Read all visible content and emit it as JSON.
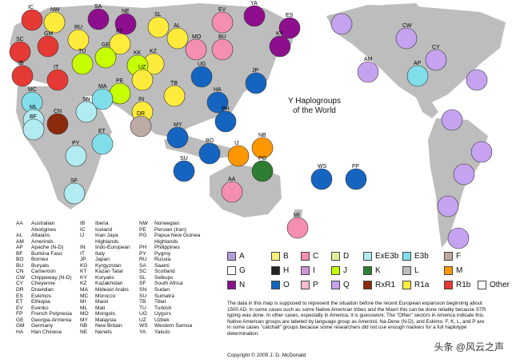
{
  "title": {
    "line1": "Y Haplogroups",
    "line2": "of the World"
  },
  "haplogroups": [
    {
      "code": "A",
      "color": "#b39ddb"
    },
    {
      "code": "B",
      "color": "#fff176"
    },
    {
      "code": "C",
      "color": "#f48fb1"
    },
    {
      "code": "D",
      "color": "#e6ee9c"
    },
    {
      "code": "ExE3b",
      "color": "#b2ebf2"
    },
    {
      "code": "E3b",
      "color": "#80deea"
    },
    {
      "code": "F",
      "color": "#bcaaa4"
    },
    {
      "code": "G",
      "color": "#ffffff"
    },
    {
      "code": "H",
      "color": "#212121"
    },
    {
      "code": "I",
      "color": "#ce93d8"
    },
    {
      "code": "J",
      "color": "#c6ff00"
    },
    {
      "code": "K",
      "color": "#2e7d32"
    },
    {
      "code": "L",
      "color": "#bdbdbd"
    },
    {
      "code": "M",
      "color": "#ff9800"
    },
    {
      "code": "N",
      "color": "#8e0f8e"
    },
    {
      "code": "O",
      "color": "#1565c0"
    },
    {
      "code": "P",
      "color": "#f8bbd0"
    },
    {
      "code": "Q",
      "color": "#c5a3f0"
    },
    {
      "code": "RxR1",
      "color": "#8b2b0e"
    },
    {
      "code": "R1a",
      "color": "#ffeb3b"
    },
    {
      "code": "R1b",
      "color": "#e53935"
    },
    {
      "code": "Other",
      "color": "#ffffff"
    }
  ],
  "regions": [
    {
      "code": "IC",
      "color": "#e53935",
      "label": "IC"
    },
    {
      "code": "NW",
      "color": "#ffeb3b",
      "label": "NW"
    },
    {
      "code": "SA",
      "color": "#8e0f8e",
      "label": "SA"
    },
    {
      "code": "NE",
      "color": "#8e0f8e",
      "label": "NE"
    },
    {
      "code": "SL",
      "color": "#ffeb3b",
      "label": "SL"
    },
    {
      "code": "EV",
      "color": "#f48fb1",
      "label": "EV"
    },
    {
      "code": "YA",
      "color": "#8e0f8e",
      "label": "YA"
    },
    {
      "code": "ES",
      "color": "#8e0f8e",
      "label": "ES"
    },
    {
      "code": "SC",
      "color": "#e53935",
      "label": "SC"
    },
    {
      "code": "GM",
      "color": "#e53935",
      "label": "GM"
    },
    {
      "code": "RU",
      "color": "#ffeb3b",
      "label": "RU"
    },
    {
      "code": "KT",
      "color": "#ffeb3b",
      "label": "KT"
    },
    {
      "code": "GE",
      "color": "#c6ff00",
      "label": "GE"
    },
    {
      "code": "AL",
      "color": "#ffeb3b",
      "label": "AL"
    },
    {
      "code": "MO",
      "color": "#f48fb1",
      "label": "MO"
    },
    {
      "code": "BU",
      "color": "#f48fb1",
      "label": "BU"
    },
    {
      "code": "KY",
      "color": "#8e0f8e",
      "label": "KY"
    },
    {
      "code": "IB",
      "color": "#e53935",
      "label": "IB"
    },
    {
      "code": "TU",
      "color": "#c6ff00",
      "label": "TU"
    },
    {
      "code": "IT",
      "color": "#e53935",
      "label": "IT"
    },
    {
      "code": "KZ",
      "color": "#ffeb3b",
      "label": "KZ"
    },
    {
      "code": "UG",
      "color": "#1565c0",
      "label": "UG"
    },
    {
      "code": "HA",
      "color": "#1565c0",
      "label": "HA"
    },
    {
      "code": "JP",
      "color": "#1565c0",
      "label": "JP"
    },
    {
      "code": "MC",
      "color": "#80deea",
      "label": "MC"
    },
    {
      "code": "AP",
      "color": "#80deea",
      "label": "AP"
    },
    {
      "code": "KK",
      "color": "#c6ff00",
      "label": "KK"
    },
    {
      "code": "UZ",
      "color": "#ffeb3b",
      "label": "UZ"
    },
    {
      "code": "TB",
      "color": "#ffeb3b",
      "label": "TB"
    },
    {
      "code": "PE",
      "color": "#c6ff00",
      "label": "PE"
    },
    {
      "code": "MA",
      "color": "#80deea",
      "label": "MA"
    },
    {
      "code": "IN",
      "color": "#ffeb3b",
      "label": "IN"
    },
    {
      "code": "ML",
      "color": "#b2ebf2",
      "label": "ML"
    },
    {
      "code": "SN",
      "color": "#b2ebf2",
      "label": "SN"
    },
    {
      "code": "DR",
      "color": "#bcaaa4",
      "label": "DR"
    },
    {
      "code": "PH",
      "color": "#1565c0",
      "label": "PH"
    },
    {
      "code": "BF",
      "color": "#b2ebf2",
      "label": "BF"
    },
    {
      "code": "CN",
      "color": "#8b2b0e",
      "label": "CN"
    },
    {
      "code": "ET",
      "color": "#80deea",
      "label": "ET"
    },
    {
      "code": "MY",
      "color": "#1565c0",
      "label": "MY"
    },
    {
      "code": "IJ",
      "color": "#ff9800",
      "label": "IJ"
    },
    {
      "code": "NB",
      "color": "#ff9800",
      "label": "NB"
    },
    {
      "code": "PY",
      "color": "#b2ebf2",
      "label": "PY"
    },
    {
      "code": "BO",
      "color": "#1565c0",
      "label": "BO"
    },
    {
      "code": "SU",
      "color": "#1565c0",
      "label": "SU"
    },
    {
      "code": "PG",
      "color": "#2e7d32",
      "label": "PG"
    },
    {
      "code": "WS",
      "color": "#1565c0",
      "label": "WS"
    },
    {
      "code": "FP",
      "color": "#1565c0",
      "label": "FP"
    },
    {
      "code": "SF",
      "color": "#b2ebf2",
      "label": "SF"
    },
    {
      "code": "AA",
      "color": "#f48fb1",
      "label": "AA"
    },
    {
      "code": "MI",
      "color": "#f48fb1",
      "label": "MI"
    },
    {
      "code": "AM",
      "color": "#c5a3f0",
      "label": "AM"
    },
    {
      "code": "CW",
      "color": "#c5a3f0",
      "label": "CW"
    },
    {
      "code": "CY",
      "color": "#c5a3f0",
      "label": "CY"
    }
  ],
  "legend_columns": [
    [
      [
        "AA",
        "Australian"
      ],
      [
        "",
        "Aborigines"
      ],
      [
        "AL",
        "Altaians"
      ],
      [
        "AM",
        "Amerinds"
      ],
      [
        "AP",
        "Apache (N-D)"
      ],
      [
        "BF",
        "Burkina Faso"
      ],
      [
        "BO",
        "Borneo"
      ],
      [
        "BU",
        "Buryats"
      ],
      [
        "CN",
        "Cameroon"
      ],
      [
        "CW",
        "Chippeway (N-D)"
      ],
      [
        "CY",
        "Cheyenne"
      ],
      [
        "DR",
        "Dravidian"
      ],
      [
        "ES",
        "Eskimos"
      ],
      [
        "ET",
        "Ethiopia"
      ],
      [
        "EV",
        "Evenks"
      ],
      [
        "FP",
        "French Polynesia"
      ],
      [
        "GE",
        "Georgia-Armenia"
      ],
      [
        "GM",
        "Germany"
      ],
      [
        "HA",
        "Han Chinese"
      ]
    ],
    [
      [
        "IB",
        "Iberia"
      ],
      [
        "IC",
        "Iceland"
      ],
      [
        "IJ",
        "Irian Jaya"
      ],
      [
        "",
        "Highlands"
      ],
      [
        "IN",
        "Indo-European"
      ],
      [
        "IT",
        "Italy"
      ],
      [
        "JP",
        "Japan"
      ],
      [
        "KG",
        "Kyrgyzstan"
      ],
      [
        "KT",
        "Kazan Tatar"
      ],
      [
        "KY",
        "Koryaks"
      ],
      [
        "KZ",
        "Kazakhstan"
      ],
      [
        "MA",
        "Mideast Arabs"
      ],
      [
        "MC",
        "Morocco"
      ],
      [
        "MI",
        "Maori"
      ],
      [
        "ML",
        "Mali"
      ],
      [
        "MO",
        "Mongols"
      ],
      [
        "MY",
        "Malaysia"
      ],
      [
        "NB",
        "New Britain"
      ],
      [
        "NE",
        "Nenets"
      ]
    ],
    [
      [
        "NW",
        "Norwegian"
      ],
      [
        "PE",
        "Persian (Iran)"
      ],
      [
        "PG",
        "Papua New Guinea"
      ],
      [
        "",
        "Highlands"
      ],
      [
        "PH",
        "Philippines"
      ],
      [
        "PY",
        "Pygmy"
      ],
      [
        "RU",
        "Russia"
      ],
      [
        "SA",
        "Saami"
      ],
      [
        "SC",
        "Scotland"
      ],
      [
        "SL",
        "Selkups"
      ],
      [
        "SF",
        "South Africa"
      ],
      [
        "SN",
        "Sudan"
      ],
      [
        "SU",
        "Sumatra"
      ],
      [
        "TB",
        "Tibet"
      ],
      [
        "TU",
        "Turkish"
      ],
      [
        "UG",
        "Uygurs"
      ],
      [
        "UZ",
        "Uzbek"
      ],
      [
        "WS",
        "Western Samoa"
      ],
      [
        "YA",
        "Yakuts"
      ]
    ]
  ],
  "note": "The data in this map is supposed to represent the situation before the recent European expansion beginning about 1500 AD. In some cases such as some Native American tribes and the Maori this can be done reliably because STR typing was done. In other cases, especially in America, it is guesswork. The \"Other\" sectors in America indicate this. Native American groups are labeled by language group as Amerind, Na-Dene (N-D), and Eskimo. F, K, L, and P are in some cases \"catchall\" groups because some researchers did not use enough markers for a full haplotype determination.",
  "copyright": "Copyright © 2005 J. D. McDonald",
  "watermark": "头条 @风云之声"
}
